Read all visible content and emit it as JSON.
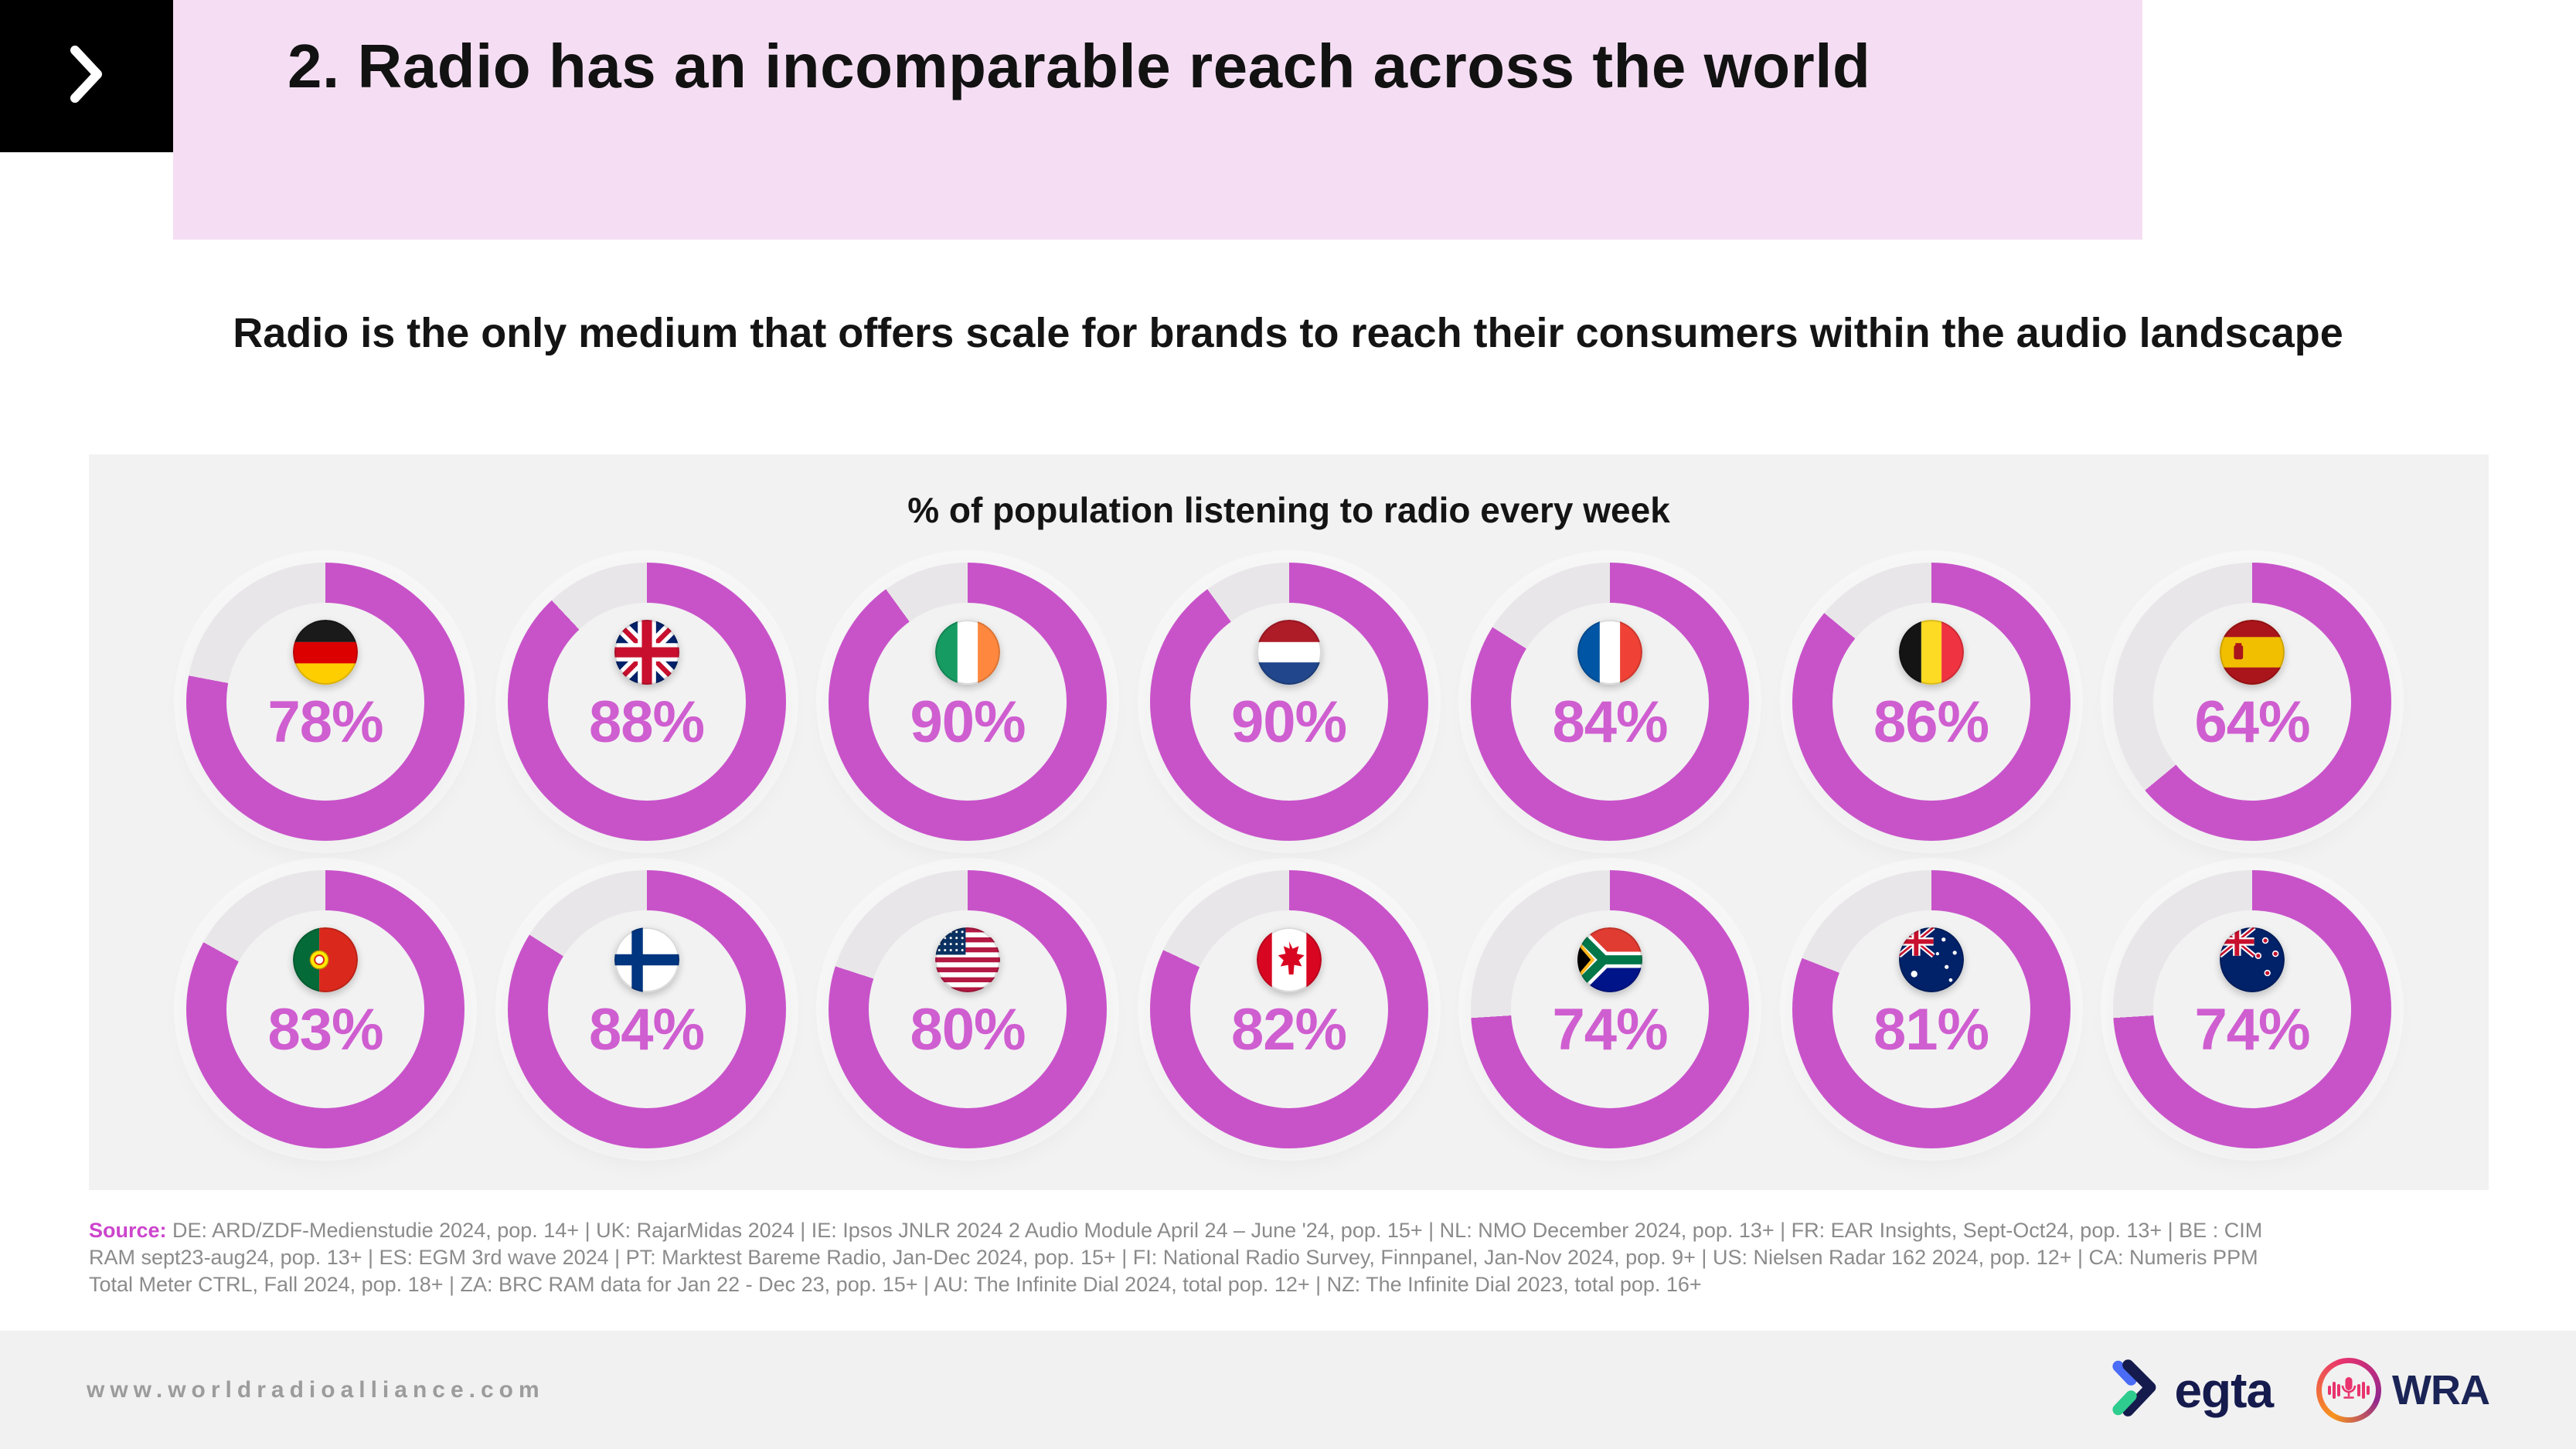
{
  "slide": {
    "header": {
      "title": "2. Radio has an incomparable reach across the world",
      "chevron_icon": "chevron-right"
    },
    "subtitle": "Radio is the only medium that offers scale for brands to reach their consumers within the audio landscape",
    "source": {
      "label": "Source:",
      "lines": [
        "DE: ARD/ZDF-Medienstudie 2024, pop. 14+ | UK: RajarMidas 2024 | IE: Ipsos JNLR 2024 2 Audio Module April 24 – June '24, pop. 15+ | NL: NMO December 2024, pop. 13+ | FR: EAR Insights, Sept-Oct24, pop. 13+ | BE : CIM",
        "RAM sept23-aug24, pop. 13+ |  ES: EGM 3rd wave 2024 | PT: Marktest Bareme Radio, Jan-Dec 2024, pop. 15+ | FI: National Radio Survey, Finnpanel, Jan-Nov 2024, pop. 9+ | US: Nielsen Radar 162 2024, pop. 12+ | CA: Numeris PPM",
        "Total Meter CTRL, Fall 2024, pop. 18+  | ZA: BRC RAM data for Jan 22 - Dec 23, pop. 15+ | AU: The Infinite Dial 2024, total pop. 12+ | NZ: The Infinite Dial 2023, total pop. 16+"
      ]
    },
    "footer": {
      "website": "www.worldradioalliance.com",
      "egta_label": "egta",
      "wra_label": "WRA"
    }
  },
  "chart_data": {
    "type": "pie",
    "title": "% of population listening to radio every week",
    "value_suffix": "%",
    "legend_position": "none",
    "ring_color": "#c853c9",
    "track_color": "#e9e6e9",
    "value_text_color": "#cf5ed0",
    "countries": [
      {
        "code": "DE",
        "name": "Germany",
        "value": 78
      },
      {
        "code": "GB",
        "name": "United Kingdom",
        "value": 88
      },
      {
        "code": "IE",
        "name": "Ireland",
        "value": 90
      },
      {
        "code": "NL",
        "name": "Netherlands",
        "value": 90
      },
      {
        "code": "FR",
        "name": "France",
        "value": 84
      },
      {
        "code": "BE",
        "name": "Belgium",
        "value": 86
      },
      {
        "code": "ES",
        "name": "Spain",
        "value": 64
      },
      {
        "code": "PT",
        "name": "Portugal",
        "value": 83
      },
      {
        "code": "FI",
        "name": "Finland",
        "value": 84
      },
      {
        "code": "US",
        "name": "United States",
        "value": 80
      },
      {
        "code": "CA",
        "name": "Canada",
        "value": 82
      },
      {
        "code": "ZA",
        "name": "South Africa",
        "value": 74
      },
      {
        "code": "AU",
        "name": "Australia",
        "value": 81
      },
      {
        "code": "NZ",
        "name": "New Zealand",
        "value": 74
      }
    ]
  }
}
